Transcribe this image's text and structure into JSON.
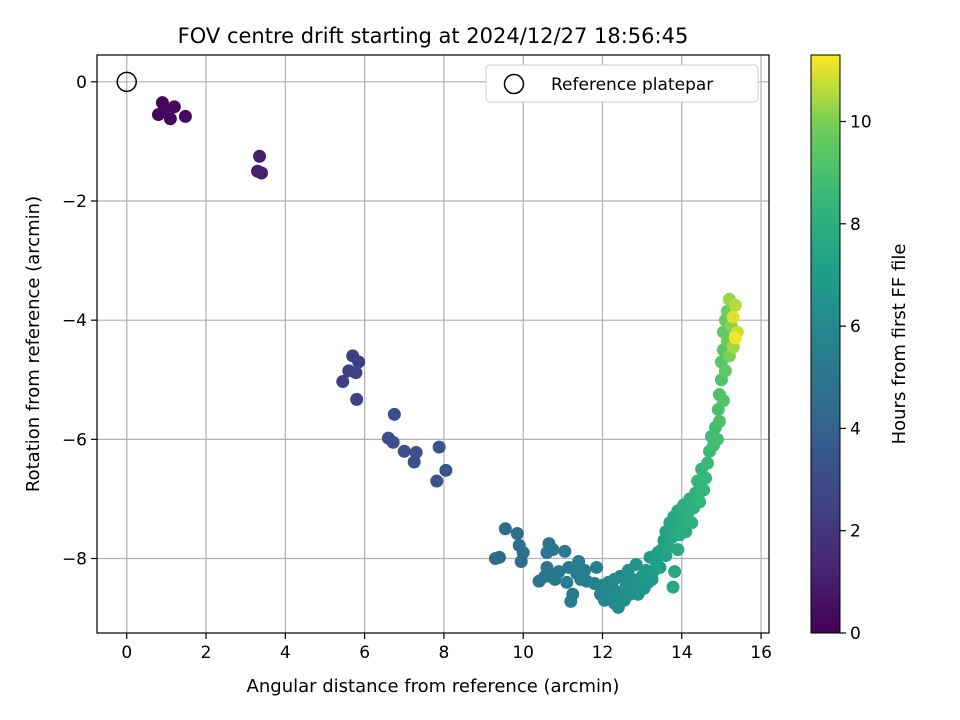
{
  "chart_data": {
    "type": "scatter",
    "title": "FOV centre drift starting at 2024/12/27 18:56:45",
    "xlabel": "Angular distance from reference (arcmin)",
    "ylabel": "Rotation from reference (arcmin)",
    "xlim": [
      -0.75,
      16.2
    ],
    "ylim": [
      -9.25,
      0.45
    ],
    "xticks": [
      0,
      2,
      4,
      6,
      8,
      10,
      12,
      14,
      16
    ],
    "yticks": [
      0,
      -2,
      -4,
      -6,
      -8
    ],
    "grid": true,
    "legend": {
      "position": "top-right",
      "label": "Reference platepar"
    },
    "reference_point": {
      "x": 0,
      "y": 0
    },
    "colorbar": {
      "label": "Hours from first FF file",
      "min": 0,
      "max": 11.3,
      "ticks": [
        0,
        2,
        4,
        6,
        8,
        10
      ],
      "colormap": "viridis"
    },
    "points": [
      [
        0.8,
        -0.55,
        0.2
      ],
      [
        0.9,
        -0.35,
        0.2
      ],
      [
        0.95,
        -0.45,
        0.3
      ],
      [
        1.1,
        -0.62,
        0.3
      ],
      [
        1.2,
        -0.42,
        0.3
      ],
      [
        1.48,
        -0.58,
        0.4
      ],
      [
        3.35,
        -1.25,
        1.0
      ],
      [
        3.3,
        -1.5,
        1.0
      ],
      [
        3.4,
        -1.53,
        1.1
      ],
      [
        5.7,
        -4.6,
        2.4
      ],
      [
        5.6,
        -4.85,
        2.4
      ],
      [
        5.45,
        -5.03,
        2.4
      ],
      [
        5.78,
        -4.88,
        2.5
      ],
      [
        5.85,
        -4.7,
        2.5
      ],
      [
        5.8,
        -5.33,
        2.5
      ],
      [
        6.75,
        -5.58,
        3.0
      ],
      [
        6.6,
        -5.98,
        3.1
      ],
      [
        6.72,
        -6.05,
        3.1
      ],
      [
        7.0,
        -6.2,
        3.1
      ],
      [
        7.25,
        -6.38,
        3.2
      ],
      [
        7.3,
        -6.22,
        3.2
      ],
      [
        7.88,
        -6.13,
        3.3
      ],
      [
        8.05,
        -6.52,
        3.3
      ],
      [
        7.82,
        -6.7,
        3.3
      ],
      [
        9.3,
        -8.0,
        4.4
      ],
      [
        9.4,
        -7.98,
        4.4
      ],
      [
        9.55,
        -7.5,
        4.5
      ],
      [
        9.85,
        -7.58,
        4.5
      ],
      [
        9.9,
        -7.78,
        4.5
      ],
      [
        10.0,
        -7.9,
        4.6
      ],
      [
        9.95,
        -8.05,
        4.6
      ],
      [
        10.4,
        -8.38,
        4.9
      ],
      [
        10.55,
        -8.3,
        4.9
      ],
      [
        10.6,
        -7.9,
        5.0
      ],
      [
        10.65,
        -7.75,
        5.0
      ],
      [
        10.75,
        -7.85,
        5.0
      ],
      [
        10.6,
        -8.15,
        5.0
      ],
      [
        10.7,
        -8.3,
        5.1
      ],
      [
        10.8,
        -8.35,
        5.1
      ],
      [
        10.9,
        -8.22,
        5.1
      ],
      [
        11.05,
        -7.88,
        5.2
      ],
      [
        11.15,
        -8.15,
        5.2
      ],
      [
        11.1,
        -8.4,
        5.3
      ],
      [
        11.25,
        -8.6,
        5.3
      ],
      [
        11.2,
        -8.72,
        5.3
      ],
      [
        11.35,
        -8.25,
        5.4
      ],
      [
        11.4,
        -8.05,
        5.4
      ],
      [
        11.45,
        -8.35,
        5.4
      ],
      [
        11.55,
        -8.2,
        5.5
      ],
      [
        11.6,
        -8.38,
        5.5
      ],
      [
        11.8,
        -8.42,
        5.6
      ],
      [
        11.85,
        -8.15,
        5.6
      ],
      [
        11.95,
        -8.6,
        5.7
      ],
      [
        12.0,
        -8.45,
        5.7
      ],
      [
        12.05,
        -8.7,
        5.8
      ],
      [
        12.1,
        -8.55,
        5.8
      ],
      [
        12.15,
        -8.4,
        5.8
      ],
      [
        12.2,
        -8.65,
        5.9
      ],
      [
        12.25,
        -8.5,
        5.9
      ],
      [
        12.3,
        -8.75,
        6.0
      ],
      [
        12.3,
        -8.35,
        6.0
      ],
      [
        12.35,
        -8.6,
        6.0
      ],
      [
        12.4,
        -8.82,
        6.1
      ],
      [
        12.45,
        -8.3,
        6.1
      ],
      [
        12.5,
        -8.55,
        6.2
      ],
      [
        12.55,
        -8.7,
        6.2
      ],
      [
        12.6,
        -8.45,
        6.3
      ],
      [
        12.65,
        -8.2,
        6.3
      ],
      [
        12.7,
        -8.6,
        6.4
      ],
      [
        12.75,
        -8.35,
        6.4
      ],
      [
        12.8,
        -8.5,
        6.5
      ],
      [
        12.85,
        -8.1,
        6.5
      ],
      [
        12.9,
        -8.6,
        6.6
      ],
      [
        12.95,
        -8.4,
        6.6
      ],
      [
        13.0,
        -8.3,
        6.7
      ],
      [
        13.05,
        -8.5,
        6.7
      ],
      [
        13.1,
        -8.2,
        6.8
      ],
      [
        13.15,
        -8.4,
        6.8
      ],
      [
        13.2,
        -7.98,
        6.9
      ],
      [
        13.25,
        -8.35,
        6.9
      ],
      [
        13.3,
        -8.2,
        7.0
      ],
      [
        13.35,
        -8.05,
        7.0
      ],
      [
        13.4,
        -7.9,
        7.1
      ],
      [
        13.45,
        -8.15,
        7.1
      ],
      [
        13.5,
        -7.85,
        7.2
      ],
      [
        13.55,
        -7.7,
        7.2
      ],
      [
        13.6,
        -7.95,
        7.3
      ],
      [
        13.6,
        -7.55,
        7.3
      ],
      [
        13.65,
        -7.8,
        7.4
      ],
      [
        13.7,
        -7.4,
        7.4
      ],
      [
        13.75,
        -7.65,
        7.5
      ],
      [
        13.8,
        -7.3,
        7.5
      ],
      [
        13.82,
        -8.22,
        7.6
      ],
      [
        13.78,
        -8.48,
        7.6
      ],
      [
        13.85,
        -7.5,
        7.6
      ],
      [
        13.9,
        -7.2,
        7.7
      ],
      [
        13.9,
        -7.85,
        7.7
      ],
      [
        13.95,
        -7.6,
        7.8
      ],
      [
        14.0,
        -7.35,
        7.8
      ],
      [
        14.05,
        -7.1,
        7.9
      ],
      [
        14.1,
        -7.55,
        7.9
      ],
      [
        14.15,
        -7.25,
        8.0
      ],
      [
        14.2,
        -7.0,
        8.0
      ],
      [
        14.25,
        -7.4,
        8.1
      ],
      [
        14.3,
        -7.15,
        8.1
      ],
      [
        14.35,
        -6.9,
        8.2
      ],
      [
        14.4,
        -6.7,
        8.3
      ],
      [
        14.45,
        -7.05,
        8.3
      ],
      [
        14.5,
        -6.5,
        8.4
      ],
      [
        14.55,
        -6.85,
        8.4
      ],
      [
        14.6,
        -6.65,
        8.5
      ],
      [
        14.65,
        -6.4,
        8.6
      ],
      [
        14.7,
        -6.2,
        8.6
      ],
      [
        14.75,
        -5.95,
        8.7
      ],
      [
        14.8,
        -6.1,
        8.8
      ],
      [
        14.85,
        -5.8,
        8.8
      ],
      [
        14.9,
        -6.0,
        8.9
      ],
      [
        14.92,
        -5.5,
        9.0
      ],
      [
        14.95,
        -5.7,
        9.0
      ],
      [
        14.95,
        -5.25,
        9.1
      ],
      [
        15.0,
        -5.0,
        9.2
      ],
      [
        15.05,
        -5.35,
        9.2
      ],
      [
        15.0,
        -4.7,
        9.3
      ],
      [
        15.05,
        -4.5,
        9.4
      ],
      [
        15.1,
        -4.85,
        9.5
      ],
      [
        15.05,
        -4.2,
        9.6
      ],
      [
        15.1,
        -4.0,
        9.7
      ],
      [
        15.15,
        -4.35,
        9.8
      ],
      [
        15.15,
        -3.85,
        9.9
      ],
      [
        15.2,
        -4.6,
        10.0
      ],
      [
        15.25,
        -4.1,
        10.1
      ],
      [
        15.2,
        -3.65,
        10.3
      ],
      [
        15.3,
        -4.45,
        10.4
      ],
      [
        15.35,
        -3.75,
        10.6
      ],
      [
        15.4,
        -4.2,
        10.8
      ],
      [
        15.3,
        -3.95,
        11.0
      ],
      [
        15.35,
        -4.3,
        11.2
      ]
    ]
  }
}
